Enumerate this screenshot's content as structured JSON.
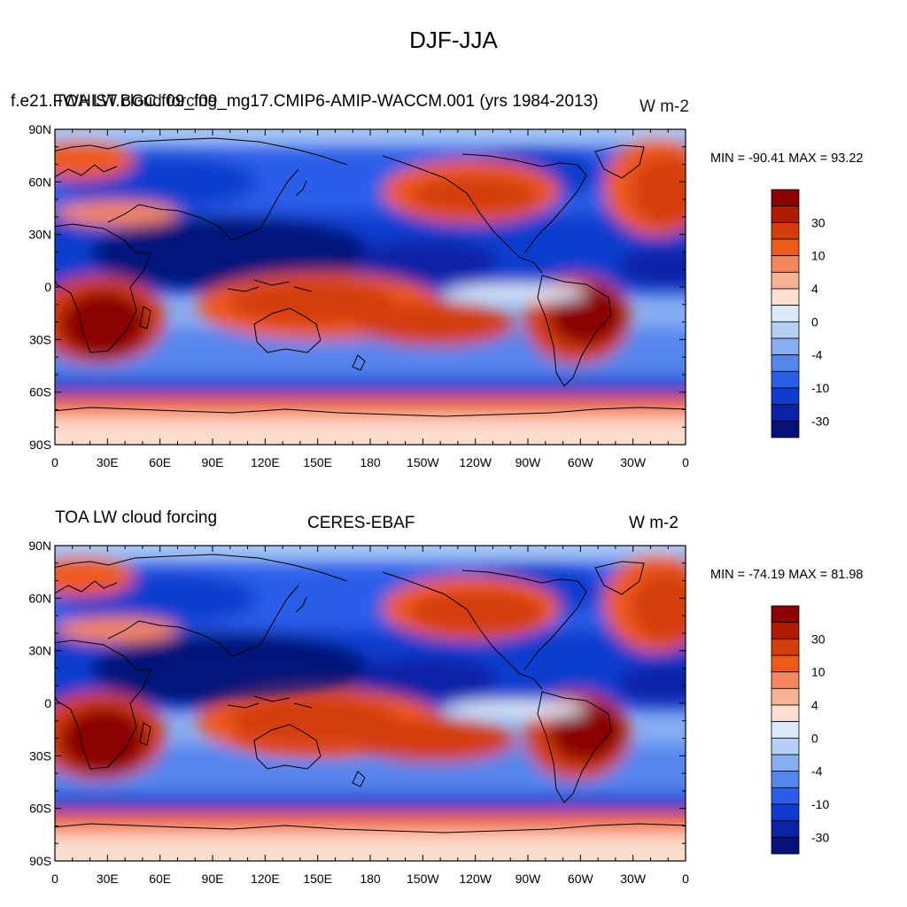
{
  "figure": {
    "title": "DJF-JJA"
  },
  "levels": [
    "30",
    "10",
    "4",
    "0",
    "-4",
    "-10",
    "-30"
  ],
  "colorbar_colors": [
    "#8b0000",
    "#b01c00",
    "#d43d0a",
    "#ef5a1a",
    "#f6875c",
    "#f9b193",
    "#fdded0",
    "#dbeafa",
    "#b4d0f5",
    "#86aef2",
    "#5585ee",
    "#2a5de8",
    "#0f3ccf",
    "#0a22a6",
    "#06127a"
  ],
  "palette": {
    "deep_red": "#8b0000",
    "red": "#d43d0a",
    "orange_red": "#ef5a1a",
    "salmon": "#f6875c",
    "light_salmon": "#f9b193",
    "pale": "#fdded0",
    "pale_blue": "#dbeafa",
    "light_blue": "#86aef2",
    "blue": "#2a5de8",
    "dark_blue": "#0a22a6",
    "navy": "#06127a"
  },
  "axes": {
    "lat_labels": [
      "90N",
      "60N",
      "30N",
      "0",
      "30S",
      "60S",
      "90S"
    ],
    "lon_labels": [
      "0",
      "30E",
      "60E",
      "90E",
      "120E",
      "150E",
      "180",
      "150W",
      "120W",
      "90W",
      "60W",
      "30W",
      "0"
    ]
  },
  "panels": [
    {
      "left_title": "f.e21.FWHIST.BGC.f09_f09_mg17.CMIP6-AMIP-WACCM.001 (yrs 1984-2013)",
      "overlay_left": "TOA LW cloud forcing",
      "overlay_right": "W m-2",
      "center_title": "",
      "right_title": "",
      "stats": "MIN = -90.41 MAX =  93.22"
    },
    {
      "left_title": "TOA LW cloud forcing",
      "overlay_left": "",
      "overlay_right": "",
      "center_title": "CERES-EBAF",
      "right_title": "W m-2",
      "stats": "MIN = -74.19 MAX =  81.98"
    }
  ],
  "chart_data": [
    {
      "type": "heatmap",
      "title": "DJF-JJA",
      "field": "TOA LW cloud forcing",
      "source": "f.e21.FWHIST.BGC.f09_f09_mg17.CMIP6-AMIP-WACCM.001 (yrs 1984-2013)",
      "units": "W m-2",
      "min": -90.41,
      "max": 93.22,
      "contour_levels": [
        -40,
        -30,
        -20,
        -10,
        -6,
        -4,
        -2,
        0,
        2,
        4,
        6,
        10,
        20,
        30,
        40
      ],
      "xlim": [
        0,
        360
      ],
      "ylim": [
        -90,
        90
      ],
      "grid": false,
      "legend": "right"
    },
    {
      "type": "heatmap",
      "title": "DJF-JJA",
      "field": "TOA LW cloud forcing",
      "source": "CERES-EBAF",
      "units": "W m-2",
      "min": -74.19,
      "max": 81.98,
      "contour_levels": [
        -40,
        -30,
        -20,
        -10,
        -6,
        -4,
        -2,
        0,
        2,
        4,
        6,
        10,
        20,
        30,
        40
      ],
      "xlim": [
        0,
        360
      ],
      "ylim": [
        -90,
        90
      ],
      "grid": false,
      "legend": "right"
    }
  ]
}
